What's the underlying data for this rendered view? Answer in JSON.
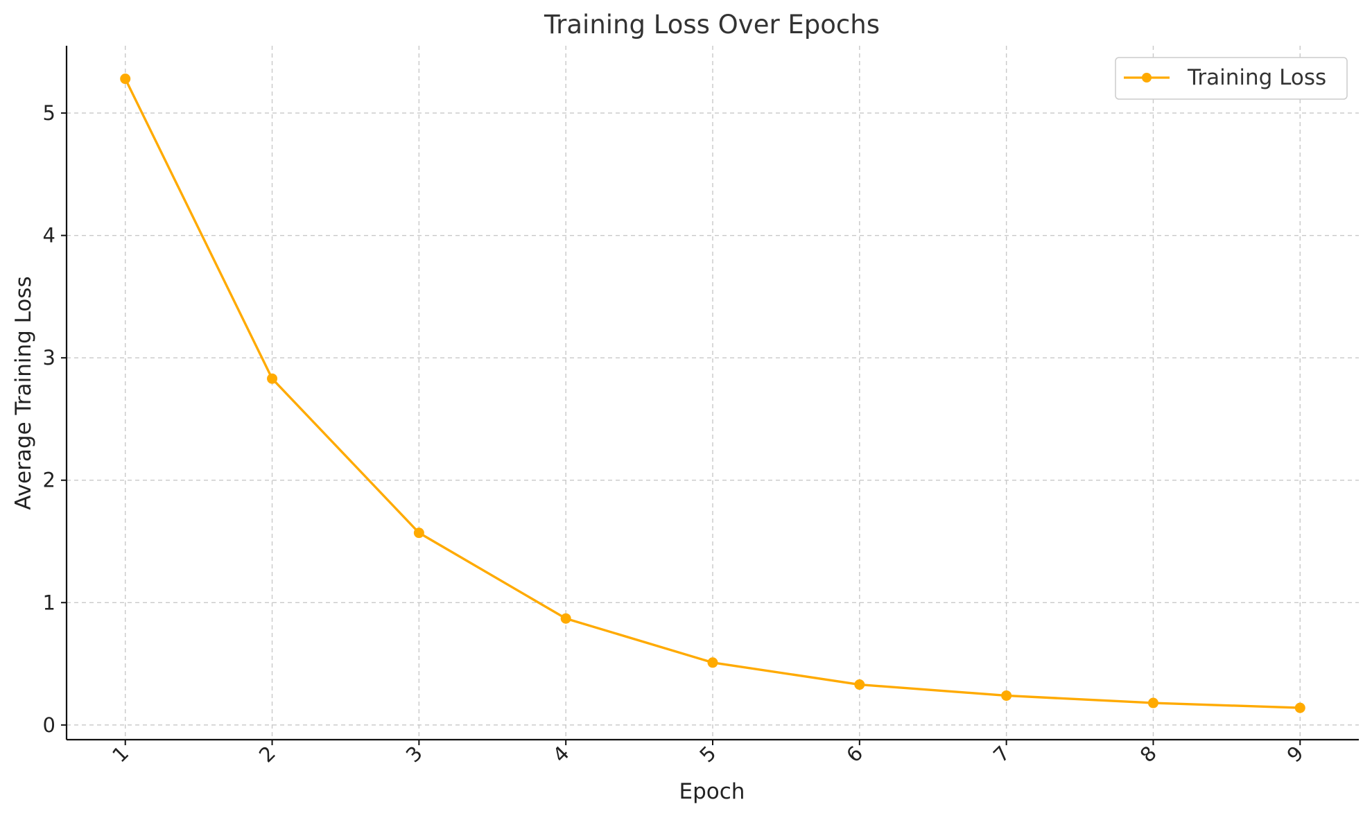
{
  "chart_data": {
    "type": "line",
    "title": "Training Loss Over Epochs",
    "xlabel": "Epoch",
    "ylabel": "Average Training Loss",
    "x": [
      1,
      2,
      3,
      4,
      5,
      6,
      7,
      8,
      9
    ],
    "x_tick_labels": [
      "1",
      "2",
      "3",
      "4",
      "5",
      "6",
      "7",
      "8",
      "9"
    ],
    "y_ticks": [
      0,
      1,
      2,
      3,
      4,
      5
    ],
    "y_tick_labels": [
      "0",
      "1",
      "2",
      "3",
      "4",
      "5"
    ],
    "xlim": [
      0.6,
      9.4
    ],
    "ylim": [
      -0.12,
      5.55
    ],
    "grid": true,
    "legend_position": "top-right",
    "series": [
      {
        "name": "Training Loss",
        "color": "#ffaa00",
        "marker": "circle",
        "values": [
          5.28,
          2.83,
          1.57,
          0.87,
          0.51,
          0.33,
          0.24,
          0.18,
          0.14
        ]
      }
    ]
  }
}
